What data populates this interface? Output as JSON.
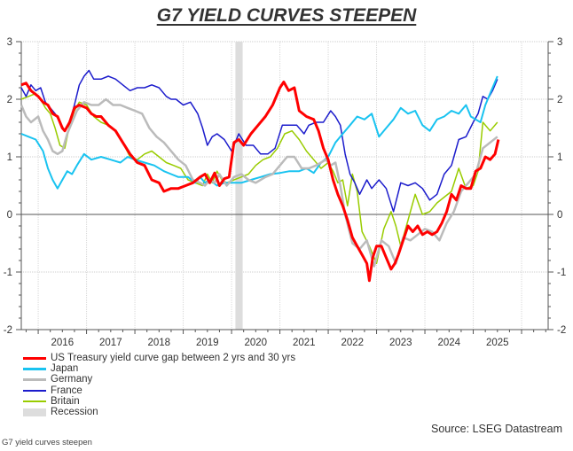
{
  "caption": "G7 yield curves steepen",
  "source": "Source: LSEG Datastream",
  "chart_data": {
    "type": "line",
    "title": "G7 YIELD CURVES STEEPEN",
    "xlabel": "",
    "ylabel": "",
    "xlim": [
      2015.65,
      2026.55
    ],
    "ylim": [
      -2,
      3
    ],
    "grid": true,
    "legend_position": "bottom-left",
    "x_tick_labels": [
      "2016",
      "2017",
      "2018",
      "2019",
      "2020",
      "2021",
      "2022",
      "2023",
      "2024",
      "2025"
    ],
    "y_tick_labels": [
      "3",
      "2",
      "1",
      "0",
      "-1",
      "-2"
    ],
    "y_ticks": [
      3,
      2,
      1,
      0,
      -1,
      -2
    ],
    "recession": {
      "label": "Recession",
      "start": 2020.08,
      "end": 2020.23,
      "color": "#dddddd"
    },
    "series": [
      {
        "name": "US Treasury yield curve gap between 2 yrs and 30 yrs",
        "color": "#ff0000",
        "width": 3,
        "x": [
          2015.65,
          2015.75,
          2015.85,
          2016.0,
          2016.1,
          2016.2,
          2016.3,
          2016.4,
          2016.5,
          2016.55,
          2016.65,
          2016.75,
          2016.85,
          2017.0,
          2017.1,
          2017.2,
          2017.3,
          2017.45,
          2017.6,
          2017.75,
          2017.9,
          2018.05,
          2018.2,
          2018.35,
          2018.5,
          2018.6,
          2018.75,
          2018.9,
          2019.05,
          2019.2,
          2019.35,
          2019.45,
          2019.55,
          2019.65,
          2019.75,
          2019.85,
          2019.95,
          2020.05,
          2020.15,
          2020.25,
          2020.4,
          2020.55,
          2020.7,
          2020.85,
          2021.0,
          2021.08,
          2021.18,
          2021.3,
          2021.4,
          2021.55,
          2021.7,
          2021.8,
          2021.9,
          2022.0,
          2022.1,
          2022.2,
          2022.3,
          2022.4,
          2022.5,
          2022.6,
          2022.7,
          2022.8,
          2022.85,
          2022.92,
          2023.0,
          2023.1,
          2023.2,
          2023.3,
          2023.38,
          2023.45,
          2023.55,
          2023.65,
          2023.75,
          2023.85,
          2023.95,
          2024.05,
          2024.15,
          2024.25,
          2024.35,
          2024.45,
          2024.55,
          2024.65,
          2024.75,
          2024.85,
          2024.95,
          2025.05,
          2025.15,
          2025.25,
          2025.35,
          2025.45,
          2025.52
        ],
        "y": [
          2.25,
          2.28,
          2.15,
          2.05,
          1.95,
          1.9,
          1.75,
          1.7,
          1.5,
          1.45,
          1.6,
          1.85,
          1.9,
          1.85,
          1.75,
          1.7,
          1.7,
          1.55,
          1.45,
          1.25,
          1.05,
          0.9,
          0.85,
          0.6,
          0.55,
          0.4,
          0.45,
          0.45,
          0.5,
          0.55,
          0.65,
          0.7,
          0.55,
          0.72,
          0.5,
          0.62,
          0.65,
          1.25,
          1.3,
          1.2,
          1.4,
          1.55,
          1.7,
          1.9,
          2.2,
          2.3,
          2.15,
          2.2,
          1.8,
          1.7,
          1.65,
          1.45,
          1.15,
          0.95,
          0.6,
          0.35,
          0.15,
          -0.1,
          -0.4,
          -0.55,
          -0.7,
          -0.85,
          -1.15,
          -0.75,
          -0.55,
          -0.55,
          -0.75,
          -0.95,
          -0.85,
          -0.7,
          -0.45,
          -0.2,
          -0.3,
          -0.2,
          -0.35,
          -0.3,
          -0.35,
          -0.3,
          -0.15,
          0.05,
          0.35,
          0.25,
          0.5,
          0.45,
          0.45,
          0.75,
          0.8,
          1.0,
          0.95,
          1.05,
          1.3
        ]
      },
      {
        "name": "Japan",
        "color": "#19c3f0",
        "width": 2,
        "x": [
          2015.65,
          2015.8,
          2015.95,
          2016.1,
          2016.2,
          2016.3,
          2016.4,
          2016.5,
          2016.6,
          2016.7,
          2016.8,
          2016.95,
          2017.1,
          2017.3,
          2017.5,
          2017.7,
          2017.85,
          2018.0,
          2018.2,
          2018.4,
          2018.6,
          2018.75,
          2018.9,
          2019.1,
          2019.25,
          2019.35,
          2019.45,
          2019.55,
          2019.7,
          2019.85,
          2020.0,
          2020.2,
          2020.4,
          2020.6,
          2020.8,
          2021.0,
          2021.2,
          2021.4,
          2021.55,
          2021.7,
          2021.85,
          2022.0,
          2022.15,
          2022.3,
          2022.45,
          2022.6,
          2022.75,
          2022.9,
          2023.05,
          2023.2,
          2023.35,
          2023.5,
          2023.65,
          2023.8,
          2023.95,
          2024.1,
          2024.25,
          2024.4,
          2024.55,
          2024.7,
          2024.85,
          2024.95,
          2025.05,
          2025.15,
          2025.25,
          2025.35,
          2025.5
        ],
        "y": [
          1.4,
          1.35,
          1.3,
          1.1,
          0.8,
          0.6,
          0.45,
          0.6,
          0.75,
          0.7,
          0.85,
          1.05,
          0.95,
          1.0,
          0.95,
          0.9,
          1.0,
          0.95,
          0.9,
          0.85,
          0.75,
          0.7,
          0.65,
          0.65,
          0.55,
          0.65,
          0.55,
          0.6,
          0.5,
          0.55,
          0.55,
          0.55,
          0.6,
          0.65,
          0.7,
          0.72,
          0.75,
          0.75,
          0.8,
          0.72,
          0.9,
          1.0,
          1.25,
          1.4,
          1.55,
          1.7,
          1.65,
          1.75,
          1.35,
          1.5,
          1.65,
          1.85,
          1.75,
          1.8,
          1.55,
          1.45,
          1.65,
          1.7,
          1.8,
          1.75,
          1.9,
          1.7,
          1.65,
          1.6,
          1.9,
          2.1,
          2.4
        ]
      },
      {
        "name": "Germany",
        "color": "#bbbbbb",
        "width": 2.5,
        "x": [
          2015.65,
          2015.75,
          2015.85,
          2016.0,
          2016.1,
          2016.2,
          2016.3,
          2016.4,
          2016.5,
          2016.6,
          2016.7,
          2016.8,
          2016.95,
          2017.1,
          2017.25,
          2017.4,
          2017.55,
          2017.7,
          2017.85,
          2018.0,
          2018.15,
          2018.3,
          2018.45,
          2018.6,
          2018.75,
          2018.9,
          2019.05,
          2019.2,
          2019.35,
          2019.45,
          2019.55,
          2019.65,
          2019.75,
          2019.9,
          2020.05,
          2020.2,
          2020.35,
          2020.5,
          2020.7,
          2020.85,
          2021.0,
          2021.15,
          2021.3,
          2021.45,
          2021.6,
          2021.75,
          2021.85,
          2021.95,
          2022.05,
          2022.15,
          2022.25,
          2022.35,
          2022.5,
          2022.65,
          2022.8,
          2022.95,
          2023.1,
          2023.25,
          2023.4,
          2023.55,
          2023.7,
          2023.85,
          2024.0,
          2024.15,
          2024.3,
          2024.45,
          2024.6,
          2024.75,
          2024.9,
          2025.05,
          2025.2,
          2025.35,
          2025.5
        ],
        "y": [
          1.9,
          1.7,
          1.6,
          1.7,
          1.45,
          1.3,
          1.1,
          1.05,
          1.1,
          1.4,
          1.6,
          1.8,
          1.95,
          1.9,
          1.9,
          2.0,
          1.9,
          1.9,
          1.85,
          1.8,
          1.75,
          1.5,
          1.35,
          1.25,
          1.1,
          0.95,
          0.85,
          0.6,
          0.55,
          0.5,
          0.6,
          0.55,
          0.7,
          0.5,
          0.65,
          0.7,
          0.6,
          0.55,
          0.65,
          0.7,
          0.85,
          1.0,
          1.0,
          0.8,
          0.8,
          0.85,
          0.9,
          0.95,
          0.85,
          0.9,
          0.5,
          0.0,
          -0.5,
          -0.6,
          -0.45,
          -0.9,
          -0.45,
          -0.55,
          -0.85,
          -0.4,
          -0.45,
          -0.35,
          -0.25,
          -0.3,
          -0.45,
          -0.15,
          0.05,
          0.4,
          0.55,
          0.7,
          1.15,
          1.25,
          1.35
        ]
      },
      {
        "name": "France",
        "color": "#1c1ccc",
        "width": 1.5,
        "x": [
          2015.65,
          2015.75,
          2015.85,
          2015.95,
          2016.05,
          2016.15,
          2016.25,
          2016.35,
          2016.45,
          2016.55,
          2016.65,
          2016.75,
          2016.85,
          2016.95,
          2017.05,
          2017.15,
          2017.3,
          2017.45,
          2017.6,
          2017.75,
          2017.9,
          2018.05,
          2018.2,
          2018.35,
          2018.5,
          2018.65,
          2018.75,
          2018.85,
          2019.0,
          2019.15,
          2019.3,
          2019.4,
          2019.5,
          2019.6,
          2019.7,
          2019.85,
          2020.0,
          2020.15,
          2020.3,
          2020.45,
          2020.6,
          2020.75,
          2020.9,
          2021.05,
          2021.2,
          2021.35,
          2021.5,
          2021.6,
          2021.75,
          2021.9,
          2022.05,
          2022.15,
          2022.25,
          2022.35,
          2022.45,
          2022.55,
          2022.65,
          2022.8,
          2022.9,
          2023.05,
          2023.2,
          2023.35,
          2023.5,
          2023.65,
          2023.8,
          2023.95,
          2024.1,
          2024.25,
          2024.4,
          2024.55,
          2024.7,
          2024.85,
          2025.0,
          2025.1,
          2025.2,
          2025.3,
          2025.4,
          2025.5
        ],
        "y": [
          2.2,
          2.05,
          2.25,
          2.15,
          2.2,
          1.95,
          1.85,
          1.75,
          1.6,
          1.45,
          1.6,
          1.9,
          2.25,
          2.4,
          2.5,
          2.35,
          2.35,
          2.4,
          2.35,
          2.25,
          2.15,
          2.2,
          2.2,
          2.25,
          2.2,
          2.05,
          2.0,
          2.0,
          1.9,
          1.95,
          1.75,
          1.5,
          1.2,
          1.35,
          1.4,
          1.3,
          1.1,
          1.4,
          1.2,
          1.2,
          1.05,
          1.05,
          1.15,
          1.55,
          1.55,
          1.55,
          1.4,
          1.55,
          1.6,
          1.6,
          1.8,
          1.7,
          1.55,
          1.05,
          0.7,
          0.55,
          0.35,
          0.6,
          0.45,
          0.6,
          0.45,
          0.05,
          0.55,
          0.5,
          0.55,
          0.45,
          0.25,
          0.35,
          0.7,
          0.85,
          1.3,
          1.35,
          1.6,
          1.75,
          2.05,
          2.0,
          2.15,
          2.35
        ]
      },
      {
        "name": "Britain",
        "color": "#99cc00",
        "width": 1.5,
        "x": [
          2015.65,
          2015.8,
          2015.95,
          2016.05,
          2016.15,
          2016.25,
          2016.35,
          2016.45,
          2016.55,
          2016.65,
          2016.75,
          2016.85,
          2017.0,
          2017.15,
          2017.3,
          2017.45,
          2017.6,
          2017.75,
          2017.9,
          2018.05,
          2018.2,
          2018.35,
          2018.5,
          2018.65,
          2018.8,
          2018.95,
          2019.1,
          2019.25,
          2019.4,
          2019.5,
          2019.6,
          2019.7,
          2019.8,
          2019.9,
          2020.05,
          2020.2,
          2020.35,
          2020.5,
          2020.65,
          2020.8,
          2020.95,
          2021.1,
          2021.25,
          2021.4,
          2021.55,
          2021.7,
          2021.85,
          2022.0,
          2022.1,
          2022.2,
          2022.3,
          2022.4,
          2022.5,
          2022.6,
          2022.7,
          2022.85,
          2023.0,
          2023.15,
          2023.3,
          2023.4,
          2023.5,
          2023.65,
          2023.8,
          2023.95,
          2024.1,
          2024.25,
          2024.4,
          2024.55,
          2024.7,
          2024.85,
          2025.0,
          2025.1,
          2025.2,
          2025.35,
          2025.5
        ],
        "y": [
          2.0,
          2.05,
          2.1,
          2.0,
          1.85,
          1.75,
          1.5,
          1.2,
          1.15,
          1.55,
          1.8,
          1.95,
          1.9,
          1.7,
          1.6,
          1.55,
          1.45,
          1.25,
          1.0,
          0.95,
          1.05,
          1.1,
          1.0,
          0.9,
          0.85,
          0.8,
          0.6,
          0.55,
          0.5,
          0.7,
          0.55,
          0.75,
          0.6,
          0.55,
          0.6,
          0.65,
          0.7,
          0.85,
          0.95,
          1.0,
          1.15,
          1.4,
          1.45,
          1.3,
          1.1,
          0.95,
          0.8,
          0.9,
          0.75,
          0.55,
          0.6,
          0.15,
          0.7,
          0.4,
          -0.3,
          -0.55,
          -0.85,
          -0.25,
          0.05,
          -0.2,
          -0.55,
          -0.1,
          0.35,
          0.0,
          0.05,
          0.2,
          0.3,
          0.4,
          0.8,
          0.45,
          0.5,
          0.75,
          1.6,
          1.45,
          1.6
        ]
      }
    ]
  }
}
